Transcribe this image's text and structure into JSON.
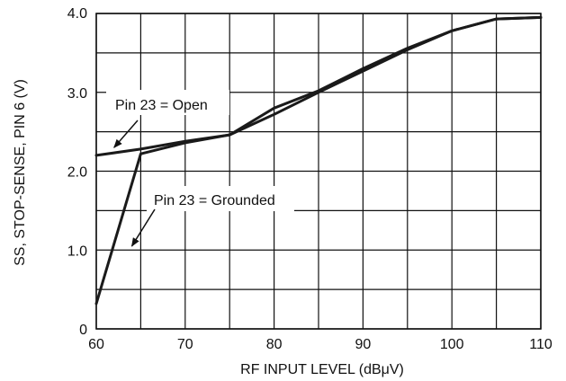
{
  "chart_data": {
    "type": "line",
    "xlabel": "RF INPUT LEVEL (dBμV)",
    "ylabel": "SS, STOP-SENSE, PIN 6 (V)",
    "xlim": [
      60,
      110
    ],
    "ylim": [
      0,
      4.0
    ],
    "xticks": [
      60,
      70,
      80,
      90,
      100,
      110
    ],
    "xtick_labels": [
      "60",
      "70",
      "80",
      "90",
      "100",
      "110"
    ],
    "xgrid": [
      60,
      65,
      70,
      75,
      80,
      85,
      90,
      95,
      100,
      105,
      110
    ],
    "yticks": [
      0,
      1.0,
      2.0,
      3.0,
      4.0
    ],
    "ytick_labels": [
      "0",
      "1.0",
      "2.0",
      "3.0",
      "4.0"
    ],
    "ygrid": [
      0,
      0.5,
      1.0,
      1.5,
      2.0,
      2.5,
      3.0,
      3.5,
      4.0
    ],
    "grid": true,
    "series": [
      {
        "name": "Pin 23 = Open",
        "x": [
          60,
          65,
          70,
          75,
          80,
          85,
          90,
          95,
          100,
          105,
          110
        ],
        "y": [
          2.2,
          2.28,
          2.38,
          2.46,
          2.8,
          3.02,
          3.3,
          3.56,
          3.78,
          3.93,
          3.95
        ]
      },
      {
        "name": "Pin 23 = Grounded",
        "x": [
          60,
          65,
          70,
          75,
          80,
          85,
          90,
          95,
          100,
          105,
          110
        ],
        "y": [
          0.32,
          2.22,
          2.36,
          2.46,
          2.72,
          3.0,
          3.27,
          3.54,
          3.78,
          3.93,
          3.95
        ]
      }
    ],
    "annotations": [
      {
        "text": "Pin 23 = Open",
        "points_to": {
          "x": 62,
          "y": 2.3
        }
      },
      {
        "text": "Pin 23 = Grounded",
        "points_to": {
          "x": 64,
          "y": 1.05
        }
      }
    ],
    "colors": {
      "line": "#1a1a1a",
      "grid": "#111111",
      "text": "#111111",
      "background": "#ffffff"
    }
  }
}
